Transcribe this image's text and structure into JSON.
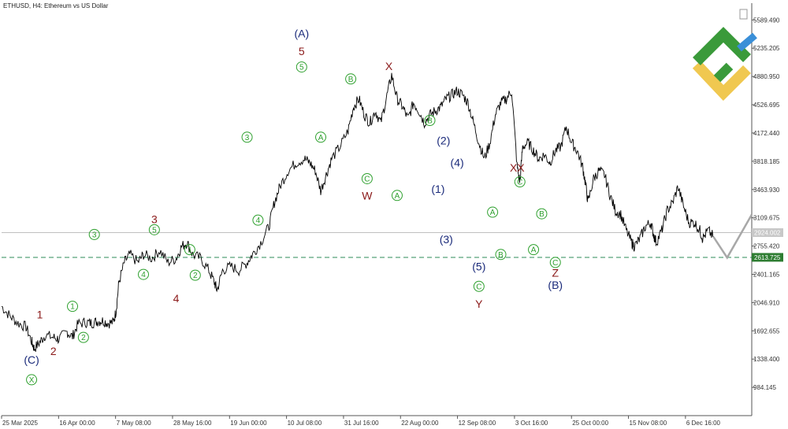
{
  "symbol_title": "ETHUSD, H4:  Ethereum vs US Dollar",
  "chart_data": {
    "type": "line",
    "symbol": "ETHUSD",
    "timeframe": "H4",
    "description": "Ethereum vs US Dollar",
    "x_tick_labels": [
      "25 Mar 2025",
      "16 Apr 00:00",
      "7 May 08:00",
      "28 May 16:00",
      "19 Jun 00:00",
      "10 Jul 08:00",
      "31 Jul 16:00",
      "22 Aug 00:00",
      "12 Sep 08:00",
      "3 Oct 16:00",
      "25 Oct 00:00",
      "15 Nov 08:00",
      "6 Dec 16:00"
    ],
    "y_tick_labels": [
      "5589.490",
      "5235.205",
      "4880.950",
      "4526.695",
      "4172.440",
      "3818.185",
      "3463.930",
      "3109.675",
      "2755.420",
      "2401.165",
      "2046.910",
      "1692.655",
      "1338.400",
      "984.145"
    ],
    "ylim": [
      630,
      5800
    ],
    "grid": false,
    "price_series": [
      [
        0,
        2000
      ],
      [
        3,
        1880
      ],
      [
        6,
        1790
      ],
      [
        9,
        1740
      ],
      [
        11,
        1560
      ],
      [
        12,
        1470
      ],
      [
        14,
        1550
      ],
      [
        16,
        1640
      ],
      [
        19,
        1610
      ],
      [
        21,
        1590
      ],
      [
        24,
        1680
      ],
      [
        26,
        1620
      ],
      [
        28,
        1780
      ],
      [
        31,
        1800
      ],
      [
        33,
        1790
      ],
      [
        35,
        1810
      ],
      [
        37,
        1820
      ],
      [
        39,
        1790
      ],
      [
        41,
        1800
      ],
      [
        42,
        1950
      ],
      [
        43,
        2300
      ],
      [
        45,
        2550
      ],
      [
        47,
        2650
      ],
      [
        50,
        2550
      ],
      [
        52,
        2650
      ],
      [
        55,
        2600
      ],
      [
        58,
        2700
      ],
      [
        61,
        2550
      ],
      [
        64,
        2600
      ],
      [
        66,
        2750
      ],
      [
        68,
        2800
      ],
      [
        70,
        2650
      ],
      [
        73,
        2600
      ],
      [
        76,
        2450
      ],
      [
        78,
        2300
      ],
      [
        79,
        2200
      ],
      [
        81,
        2450
      ],
      [
        84,
        2500
      ],
      [
        87,
        2450
      ],
      [
        90,
        2550
      ],
      [
        92,
        2650
      ],
      [
        95,
        2800
      ],
      [
        98,
        3000
      ],
      [
        100,
        3300
      ],
      [
        102,
        3500
      ],
      [
        105,
        3700
      ],
      [
        108,
        3800
      ],
      [
        111,
        3850
      ],
      [
        113,
        3800
      ],
      [
        115,
        3700
      ],
      [
        117,
        3450
      ],
      [
        119,
        3650
      ],
      [
        121,
        3850
      ],
      [
        124,
        4000
      ],
      [
        127,
        4200
      ],
      [
        129,
        4500
      ],
      [
        131,
        4600
      ],
      [
        133,
        4400
      ],
      [
        135,
        4300
      ],
      [
        137,
        4450
      ],
      [
        139,
        4300
      ],
      [
        141,
        4600
      ],
      [
        143,
        4900
      ],
      [
        145,
        4600
      ],
      [
        147,
        4500
      ],
      [
        149,
        4350
      ],
      [
        151,
        4550
      ],
      [
        153,
        4450
      ],
      [
        155,
        4300
      ],
      [
        157,
        4400
      ],
      [
        159,
        4450
      ],
      [
        161,
        4500
      ],
      [
        163,
        4600
      ],
      [
        165,
        4650
      ],
      [
        167,
        4700
      ],
      [
        169,
        4650
      ],
      [
        171,
        4550
      ],
      [
        173,
        4300
      ],
      [
        175,
        4050
      ],
      [
        177,
        3850
      ],
      [
        179,
        4050
      ],
      [
        181,
        4400
      ],
      [
        183,
        4550
      ],
      [
        185,
        4600
      ],
      [
        187,
        4700
      ],
      [
        189,
        3750
      ],
      [
        190,
        3550
      ],
      [
        191,
        4000
      ],
      [
        193,
        4050
      ],
      [
        195,
        3950
      ],
      [
        197,
        3850
      ],
      [
        199,
        3900
      ],
      [
        201,
        3800
      ],
      [
        203,
        3950
      ],
      [
        205,
        4000
      ],
      [
        207,
        4250
      ],
      [
        209,
        4050
      ],
      [
        211,
        3950
      ],
      [
        213,
        3750
      ],
      [
        214,
        3550
      ],
      [
        215,
        3300
      ],
      [
        217,
        3600
      ],
      [
        219,
        3700
      ],
      [
        221,
        3650
      ],
      [
        223,
        3400
      ],
      [
        225,
        3200
      ],
      [
        227,
        3150
      ],
      [
        229,
        2950
      ],
      [
        231,
        2800
      ],
      [
        232,
        2750
      ],
      [
        234,
        2850
      ],
      [
        236,
        3000
      ],
      [
        238,
        3050
      ],
      [
        239,
        2900
      ],
      [
        240,
        2800
      ],
      [
        242,
        2950
      ],
      [
        244,
        3200
      ],
      [
        246,
        3300
      ],
      [
        248,
        3500
      ],
      [
        250,
        3250
      ],
      [
        252,
        3050
      ],
      [
        254,
        3050
      ],
      [
        256,
        2950
      ],
      [
        257,
        2850
      ],
      [
        259,
        2950
      ],
      [
        261,
        2870
      ]
    ],
    "series_visible": [
      0,
      261
    ],
    "current_price_label": "2924.002",
    "current_price_value": 2924.002,
    "support_label": "2613.725",
    "support_value": 2613.725,
    "projection": [
      [
        261,
        2870
      ],
      [
        266,
        2610
      ],
      [
        275,
        3150
      ]
    ],
    "wave_labels": [
      {
        "text": "(C)",
        "color": "#1a2a7a",
        "x": 11,
        "y": 1330
      },
      {
        "text": "X",
        "color": "#2ea02e",
        "x": 11,
        "y": 1080,
        "circled": true
      },
      {
        "text": "1",
        "color": "#8b1a1a",
        "x": 14,
        "y": 1900
      },
      {
        "text": "2",
        "color": "#8b1a1a",
        "x": 19,
        "y": 1440
      },
      {
        "text": "1",
        "color": "#2ea02e",
        "x": 26,
        "y": 2000,
        "circled": true
      },
      {
        "text": "2",
        "color": "#2ea02e",
        "x": 30,
        "y": 1610,
        "circled": true
      },
      {
        "text": "3",
        "color": "#2ea02e",
        "x": 34,
        "y": 2900,
        "circled": true
      },
      {
        "text": "4",
        "color": "#2ea02e",
        "x": 52,
        "y": 2400,
        "circled": true
      },
      {
        "text": "3",
        "color": "#8b1a1a",
        "x": 56,
        "y": 3090
      },
      {
        "text": "5",
        "color": "#2ea02e",
        "x": 56,
        "y": 2960,
        "circled": true
      },
      {
        "text": "4",
        "color": "#8b1a1a",
        "x": 64,
        "y": 2100
      },
      {
        "text": "1",
        "color": "#2ea02e",
        "x": 69,
        "y": 2710,
        "circled": true
      },
      {
        "text": "2",
        "color": "#2ea02e",
        "x": 71,
        "y": 2390,
        "circled": true
      },
      {
        "text": "3",
        "color": "#2ea02e",
        "x": 90,
        "y": 4120,
        "circled": true
      },
      {
        "text": "4",
        "color": "#2ea02e",
        "x": 94,
        "y": 3080,
        "circled": true
      },
      {
        "text": "(A)",
        "color": "#1a2a7a",
        "x": 110,
        "y": 5420
      },
      {
        "text": "5",
        "color": "#8b1a1a",
        "x": 110,
        "y": 5200
      },
      {
        "text": "5",
        "color": "#2ea02e",
        "x": 110,
        "y": 5000,
        "circled": true
      },
      {
        "text": "A",
        "color": "#2ea02e",
        "x": 117,
        "y": 4120,
        "circled": true
      },
      {
        "text": "B",
        "color": "#2ea02e",
        "x": 128,
        "y": 4850,
        "circled": true
      },
      {
        "text": "C",
        "color": "#2ea02e",
        "x": 134,
        "y": 3600,
        "circled": true
      },
      {
        "text": "W",
        "color": "#8b1a1a",
        "x": 134,
        "y": 3390
      },
      {
        "text": "X",
        "color": "#8b1a1a",
        "x": 142,
        "y": 5010
      },
      {
        "text": "A",
        "color": "#2ea02e",
        "x": 145,
        "y": 3390,
        "circled": true
      },
      {
        "text": "B",
        "color": "#2ea02e",
        "x": 157,
        "y": 4330,
        "circled": true
      },
      {
        "text": "(2)",
        "color": "#1a2a7a",
        "x": 162,
        "y": 4080
      },
      {
        "text": "(1)",
        "color": "#1a2a7a",
        "x": 160,
        "y": 3470
      },
      {
        "text": "(4)",
        "color": "#1a2a7a",
        "x": 167,
        "y": 3800
      },
      {
        "text": "(3)",
        "color": "#1a2a7a",
        "x": 163,
        "y": 2840
      },
      {
        "text": "A",
        "color": "#2ea02e",
        "x": 180,
        "y": 3180,
        "circled": true
      },
      {
        "text": "(5)",
        "color": "#1a2a7a",
        "x": 175,
        "y": 2500
      },
      {
        "text": "B",
        "color": "#2ea02e",
        "x": 183,
        "y": 2650,
        "circled": true
      },
      {
        "text": "C",
        "color": "#2ea02e",
        "x": 175,
        "y": 2250,
        "circled": true
      },
      {
        "text": "Y",
        "color": "#8b1a1a",
        "x": 175,
        "y": 2030
      },
      {
        "text": "XX",
        "color": "#8b1a1a",
        "x": 189,
        "y": 3740
      },
      {
        "text": "C",
        "color": "#2ea02e",
        "x": 190,
        "y": 3560,
        "circled": true
      },
      {
        "text": "B",
        "color": "#2ea02e",
        "x": 198,
        "y": 3160,
        "circled": true
      },
      {
        "text": "A",
        "color": "#2ea02e",
        "x": 195,
        "y": 2710,
        "circled": true
      },
      {
        "text": "C",
        "color": "#2ea02e",
        "x": 203,
        "y": 2550,
        "circled": true
      },
      {
        "text": "Z",
        "color": "#8b1a1a",
        "x": 203,
        "y": 2420
      },
      {
        "text": "(B)",
        "color": "#1a2a7a",
        "x": 203,
        "y": 2270
      }
    ]
  },
  "colors": {
    "background": "#ffffff",
    "price_line": "#000000",
    "axis": "#555555",
    "support_line": "#2e8b57",
    "support_tag": "#2e7d32",
    "current_tag": "#c8c8c8",
    "projection": "#a8a8a8",
    "logo_green": "#3a9a3a",
    "logo_yellow": "#f0c850",
    "logo_blue": "#3a8fd8"
  }
}
